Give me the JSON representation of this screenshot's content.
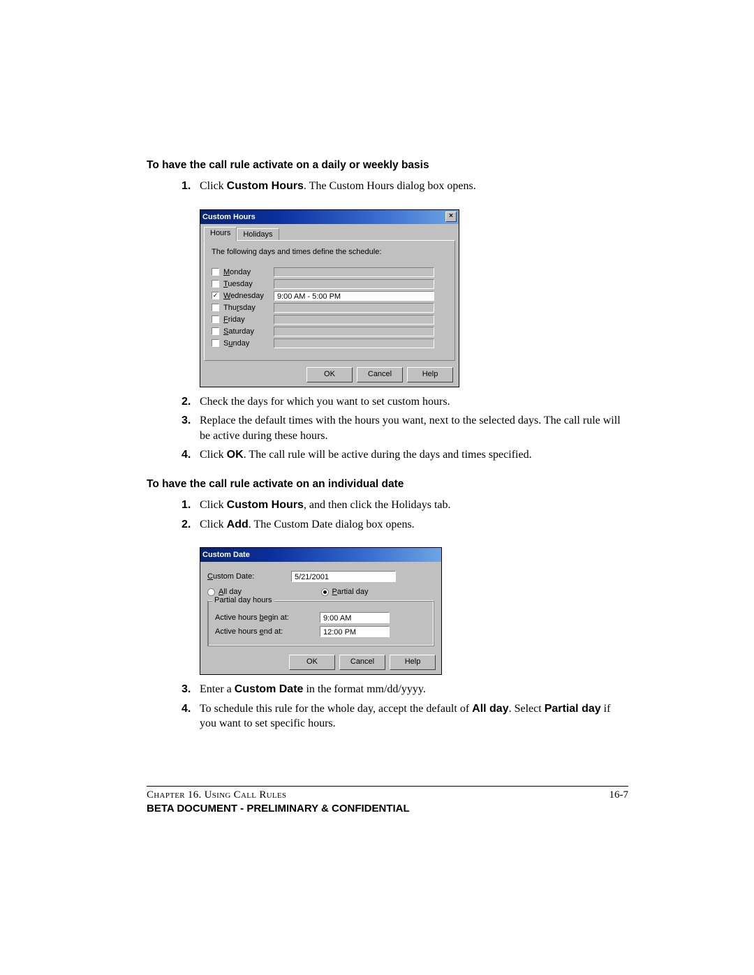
{
  "section1": {
    "heading": "To have the call rule activate on a daily or weekly basis",
    "steps": [
      {
        "num": "1.",
        "html": "Click <b>Custom Hours</b>. The Custom Hours dialog box opens."
      },
      {
        "num": "2.",
        "html": "Check the days for which you want to set custom hours."
      },
      {
        "num": "3.",
        "html": "Replace the default times with the hours you want, next to the selected days. The call rule will be active during these hours."
      },
      {
        "num": "4.",
        "html": "Click <b>OK</b>. The call rule will be active during the days and times specified."
      }
    ]
  },
  "section2": {
    "heading": "To have the call rule activate on an individual date",
    "steps": [
      {
        "num": "1.",
        "html": "Click <b>Custom Hours</b>, and then click the Holidays tab."
      },
      {
        "num": "2.",
        "html": "Click <b>Add</b>. The Custom Date dialog box opens."
      },
      {
        "num": "3.",
        "html": "Enter a <b>Custom Date</b> in the format mm/dd/yyyy."
      },
      {
        "num": "4.",
        "html": "To schedule this rule for the whole day, accept the default of <b>All day</b>. Select <b>Partial day</b> if you want to set specific hours."
      }
    ]
  },
  "dialog_hours": {
    "title": "Custom Hours",
    "tabs": [
      "Hours",
      "Holidays"
    ],
    "instruction": "The following days and times define the schedule:",
    "days": [
      {
        "label": "Monday",
        "u": "M",
        "rest": "onday",
        "checked": false,
        "value": ""
      },
      {
        "label": "Tuesday",
        "u": "T",
        "rest": "uesday",
        "checked": false,
        "value": ""
      },
      {
        "label": "Wednesday",
        "u": "W",
        "rest": "ednesday",
        "checked": true,
        "value": "9:00 AM - 5:00 PM"
      },
      {
        "label": "Thursday",
        "u": "T",
        "rest2": "hu",
        "u2": "r",
        "rest": "sday",
        "checked": false,
        "value": ""
      },
      {
        "label": "Friday",
        "u": "F",
        "rest": "riday",
        "checked": false,
        "value": ""
      },
      {
        "label": "Saturday",
        "u": "S",
        "rest": "aturday",
        "checked": false,
        "value": ""
      },
      {
        "label": "Sunday",
        "u": "S",
        "rest2": "",
        "u2": "u",
        "rest": "nday",
        "checked": false,
        "value": ""
      }
    ],
    "buttons": [
      "OK",
      "Cancel",
      "Help"
    ]
  },
  "dialog_date": {
    "title": "Custom Date",
    "date_label": "Custom Date:",
    "date_value": "5/21/2001",
    "radio_allday": "All day",
    "radio_partial": "Partial day",
    "radio_selected": "partial",
    "group_title": "Partial day hours",
    "begin_label": "Active hours begin at:",
    "begin_value": "9:00 AM",
    "end_label": "Active hours end at:",
    "end_value": "12:00 PM",
    "buttons": [
      "OK",
      "Cancel",
      "Help"
    ]
  },
  "footer": {
    "chapter": "Chapter 16. Using Call Rules",
    "pagenum": "16-7",
    "confidential": "BETA DOCUMENT - PRELIMINARY & CONFIDENTIAL"
  }
}
